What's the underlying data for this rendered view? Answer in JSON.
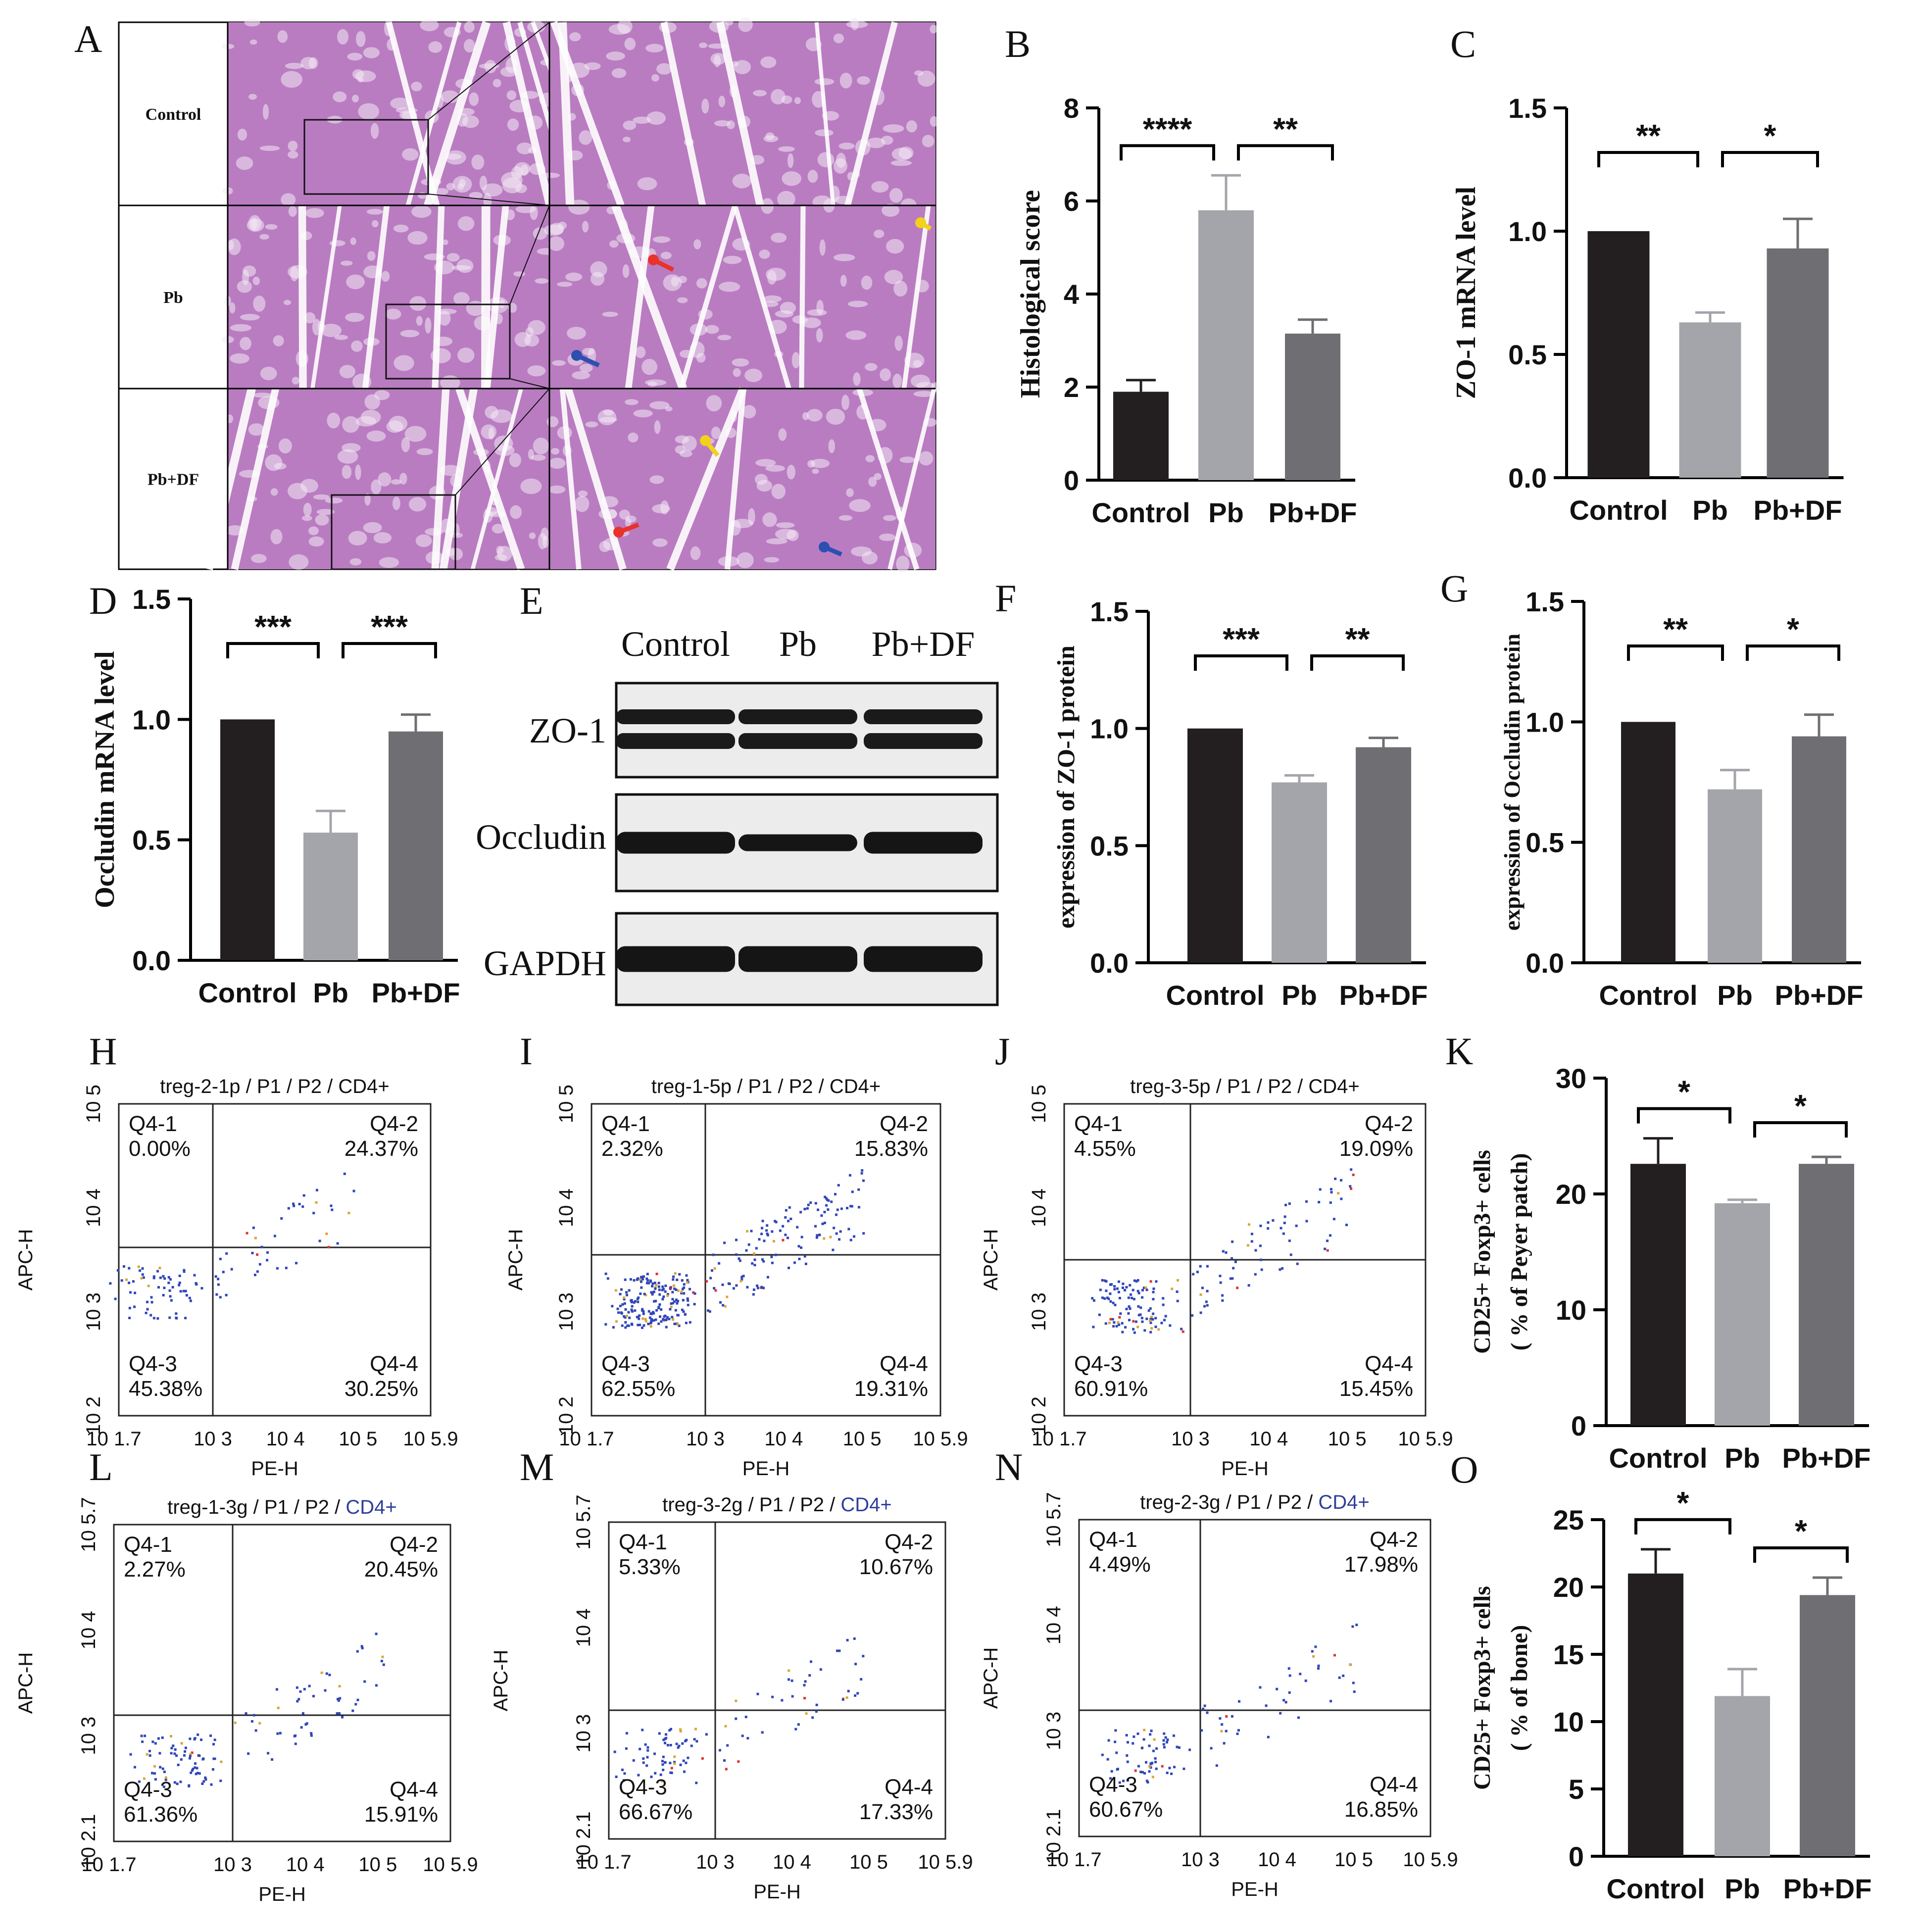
{
  "panel_letters": [
    "A",
    "B",
    "C",
    "D",
    "E",
    "F",
    "G",
    "H",
    "I",
    "J",
    "K",
    "L",
    "M",
    "N",
    "O"
  ],
  "histology": {
    "rows": [
      "Control",
      "Pb",
      "Pb+DF"
    ],
    "arrow_colors": {
      "red": "#e8322a",
      "blue": "#2c4fb0",
      "yellow": "#f2d21a"
    },
    "stain_color": "#b97cc1"
  },
  "western_blot": {
    "lanes": [
      "Control",
      "Pb",
      "Pb+DF"
    ],
    "bands": [
      "ZO-1",
      "Occludin",
      "GAPDH"
    ]
  },
  "colors": {
    "Control": "#231f20",
    "Pb": "#a4a5ab",
    "Pb+DF": "#6f6f73"
  },
  "chart_data": [
    {
      "panel": "B",
      "type": "bar",
      "categories": [
        "Control",
        "Pb",
        "Pb+DF"
      ],
      "values": [
        1.9,
        5.8,
        3.15
      ],
      "errors": [
        0.25,
        0.75,
        0.3
      ],
      "ylabel": "Histological score",
      "ylim": [
        0,
        8
      ],
      "yticks": [
        "0",
        "2",
        "4",
        "6",
        "8"
      ],
      "significance": [
        {
          "from": 0,
          "to": 1,
          "label": "****"
        },
        {
          "from": 1,
          "to": 2,
          "label": "**"
        }
      ]
    },
    {
      "panel": "C",
      "type": "bar",
      "categories": [
        "Control",
        "Pb",
        "Pb+DF"
      ],
      "values": [
        1.0,
        0.63,
        0.93
      ],
      "errors": [
        0,
        0.04,
        0.12
      ],
      "ylabel": "ZO-1 mRNA level",
      "ylim": [
        0,
        1.5
      ],
      "yticks": [
        "0.0",
        "0.5",
        "1.0",
        "1.5"
      ],
      "significance": [
        {
          "from": 0,
          "to": 1,
          "label": "**"
        },
        {
          "from": 1,
          "to": 2,
          "label": "*"
        }
      ]
    },
    {
      "panel": "D",
      "type": "bar",
      "categories": [
        "Control",
        "Pb",
        "Pb+DF"
      ],
      "values": [
        1.0,
        0.53,
        0.95
      ],
      "errors": [
        0,
        0.09,
        0.07
      ],
      "ylabel": "Occludin mRNA level",
      "ylim": [
        0,
        1.5
      ],
      "yticks": [
        "0.0",
        "0.5",
        "1.0",
        "1.5"
      ],
      "significance": [
        {
          "from": 0,
          "to": 1,
          "label": "***"
        },
        {
          "from": 1,
          "to": 2,
          "label": "***"
        }
      ]
    },
    {
      "panel": "F",
      "type": "bar",
      "categories": [
        "Control",
        "Pb",
        "Pb+DF"
      ],
      "values": [
        1.0,
        0.77,
        0.92
      ],
      "errors": [
        0,
        0.03,
        0.04
      ],
      "ylabel": "expression of ZO-1 protein",
      "ylim": [
        0,
        1.5
      ],
      "yticks": [
        "0.0",
        "0.5",
        "1.0",
        "1.5"
      ],
      "significance": [
        {
          "from": 0,
          "to": 1,
          "label": "***"
        },
        {
          "from": 1,
          "to": 2,
          "label": "**"
        }
      ]
    },
    {
      "panel": "G",
      "type": "bar",
      "categories": [
        "Control",
        "Pb",
        "Pb+DF"
      ],
      "values": [
        1.0,
        0.72,
        0.94
      ],
      "errors": [
        0,
        0.08,
        0.09
      ],
      "ylabel": "expression of Occludin protein",
      "ylim": [
        0,
        1.5
      ],
      "yticks": [
        "0.0",
        "0.5",
        "1.0",
        "1.5"
      ],
      "significance": [
        {
          "from": 0,
          "to": 1,
          "label": "**"
        },
        {
          "from": 1,
          "to": 2,
          "label": "*"
        }
      ]
    },
    {
      "panel": "K",
      "type": "bar",
      "categories": [
        "Control",
        "Pb",
        "Pb+DF"
      ],
      "values": [
        22.6,
        19.2,
        22.6
      ],
      "errors": [
        2.2,
        0.3,
        0.6
      ],
      "ylabel": "CD25+ Foxp3+ cells",
      "ylabel2": "( % of Peyer patch)",
      "ylim": [
        0,
        30
      ],
      "yticks": [
        "0",
        "10",
        "20",
        "30"
      ],
      "significance": [
        {
          "from": 0,
          "to": 1,
          "label": "*"
        },
        {
          "from": 1,
          "to": 2,
          "label": "*"
        }
      ]
    },
    {
      "panel": "O",
      "type": "bar",
      "categories": [
        "Control",
        "Pb",
        "Pb+DF"
      ],
      "values": [
        21.0,
        11.9,
        19.4
      ],
      "errors": [
        1.8,
        2.0,
        1.3
      ],
      "ylabel": "CD25+ Foxp3+ cells",
      "ylabel2": "( % of bone)",
      "ylim": [
        0,
        25
      ],
      "yticks": [
        "0",
        "5",
        "10",
        "15",
        "20",
        "25"
      ],
      "significance": [
        {
          "from": 0,
          "to": 1,
          "label": "*"
        },
        {
          "from": 1,
          "to": 2,
          "label": "*"
        }
      ]
    },
    {
      "panel": "H",
      "type": "scatter",
      "title": "treg-2-1p / P1 / P2 / CD4+",
      "xlabel": "PE-H",
      "ylabel": "APC-H",
      "xticks": [
        "10 1.7",
        "10 3",
        "10 4",
        "10 5",
        "10 5.9"
      ],
      "yticks": [
        "10 5",
        "10 4",
        "10 3",
        "10 2"
      ],
      "quadrants": [
        {
          "name": "Q4-1",
          "value": "0.00%"
        },
        {
          "name": "Q4-2",
          "value": "24.37%"
        },
        {
          "name": "Q4-3",
          "value": "45.38%"
        },
        {
          "name": "Q4-4",
          "value": "30.25%"
        }
      ]
    },
    {
      "panel": "I",
      "type": "scatter",
      "title": "treg-1-5p / P1 / P2 / CD4+",
      "xlabel": "PE-H",
      "ylabel": "APC-H",
      "xticks": [
        "10 1.7",
        "10 3",
        "10 4",
        "10 5",
        "10 5.9"
      ],
      "yticks": [
        "10 5",
        "10 4",
        "10 3",
        "10 2"
      ],
      "quadrants": [
        {
          "name": "Q4-1",
          "value": "2.32%"
        },
        {
          "name": "Q4-2",
          "value": "15.83%"
        },
        {
          "name": "Q4-3",
          "value": "62.55%"
        },
        {
          "name": "Q4-4",
          "value": "19.31%"
        }
      ]
    },
    {
      "panel": "J",
      "type": "scatter",
      "title": "treg-3-5p / P1 / P2 / CD4+",
      "xlabel": "PE-H",
      "ylabel": "APC-H",
      "xticks": [
        "10 1.7",
        "10 3",
        "10 4",
        "10 5",
        "10 5.9"
      ],
      "yticks": [
        "10 5",
        "10 4",
        "10 3",
        "10 2"
      ],
      "quadrants": [
        {
          "name": "Q4-1",
          "value": "4.55%"
        },
        {
          "name": "Q4-2",
          "value": "19.09%"
        },
        {
          "name": "Q4-3",
          "value": "60.91%"
        },
        {
          "name": "Q4-4",
          "value": "15.45%"
        }
      ]
    },
    {
      "panel": "L",
      "type": "scatter",
      "title": "treg-1-3g / P1 / P2 / ",
      "title_tail": "CD4+",
      "xlabel": "PE-H",
      "ylabel": "APC-H",
      "xticks": [
        "10 1.7",
        "10 3",
        "10 4",
        "10 5",
        "10 5.9"
      ],
      "yticks": [
        "10 5.7",
        "10 4",
        "10 3",
        "10 2.1"
      ],
      "quadrants": [
        {
          "name": "Q4-1",
          "value": "2.27%"
        },
        {
          "name": "Q4-2",
          "value": "20.45%"
        },
        {
          "name": "Q4-3",
          "value": "61.36%"
        },
        {
          "name": "Q4-4",
          "value": "15.91%"
        }
      ]
    },
    {
      "panel": "M",
      "type": "scatter",
      "title": "treg-3-2g / P1 / P2 / ",
      "title_tail": "CD4+",
      "xlabel": "PE-H",
      "ylabel": "APC-H",
      "xticks": [
        "10 1.7",
        "10 3",
        "10 4",
        "10 5",
        "10 5.9"
      ],
      "yticks": [
        "10 5.7",
        "10 4",
        "10 3",
        "10 2.1"
      ],
      "quadrants": [
        {
          "name": "Q4-1",
          "value": "5.33%"
        },
        {
          "name": "Q4-2",
          "value": "10.67%"
        },
        {
          "name": "Q4-3",
          "value": "66.67%"
        },
        {
          "name": "Q4-4",
          "value": "17.33%"
        }
      ]
    },
    {
      "panel": "N",
      "type": "scatter",
      "title": "treg-2-3g / P1 / P2 / ",
      "title_tail": "CD4+",
      "xlabel": "PE-H",
      "ylabel": "APC-H",
      "xticks": [
        "10 1.7",
        "10 3",
        "10 4",
        "10 5",
        "10 5.9"
      ],
      "yticks": [
        "10 5.7",
        "10 4",
        "10 3",
        "10 2.1"
      ],
      "quadrants": [
        {
          "name": "Q4-1",
          "value": "4.49%"
        },
        {
          "name": "Q4-2",
          "value": "17.98%"
        },
        {
          "name": "Q4-3",
          "value": "60.67%"
        },
        {
          "name": "Q4-4",
          "value": "16.85%"
        }
      ]
    }
  ]
}
